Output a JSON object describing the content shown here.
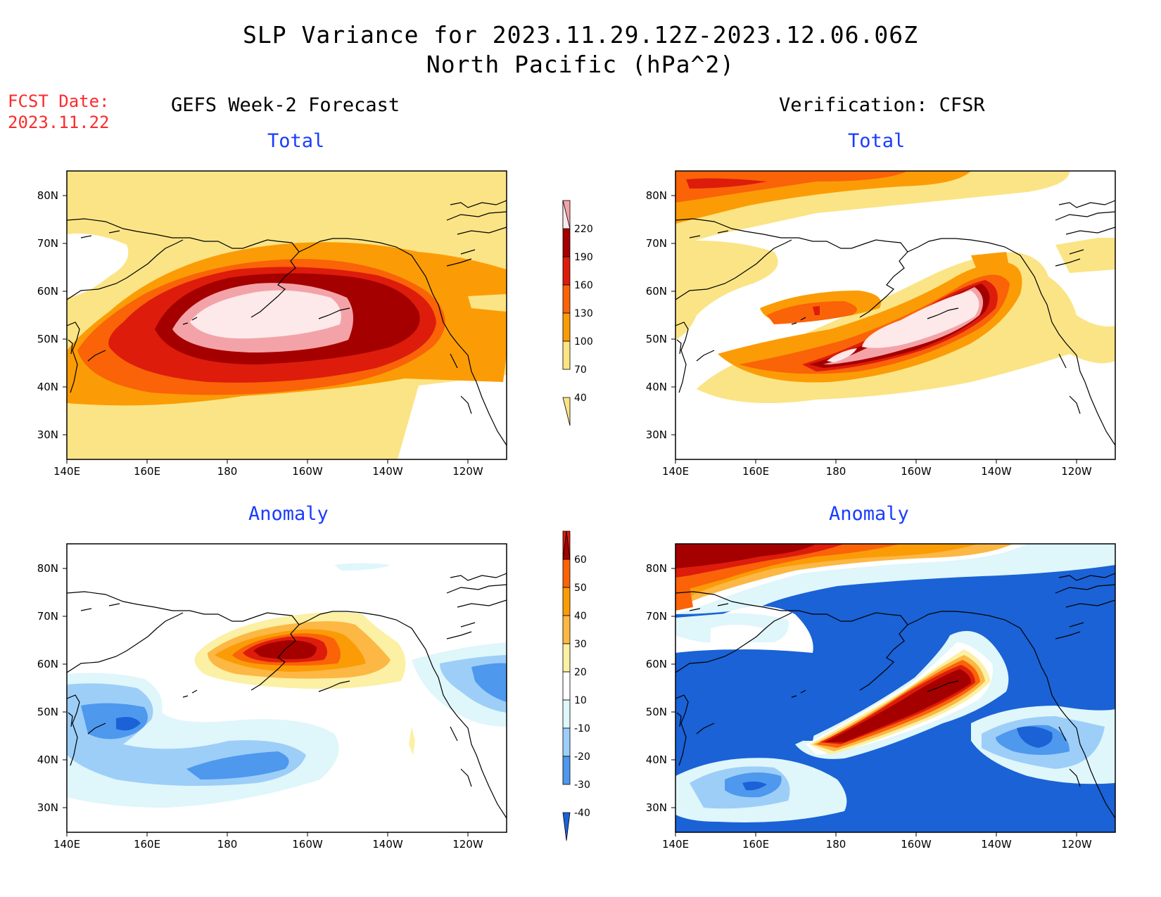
{
  "header": {
    "title_line1": "SLP Variance for 2023.11.29.12Z-2023.12.06.06Z",
    "title_line2": "North Pacific (hPa^2)",
    "fcst_label": "FCST Date:",
    "fcst_date": "2023.11.22"
  },
  "columns": {
    "left_title": "GEFS Week-2 Forecast",
    "right_title": "Verification: CFSR"
  },
  "panels": {
    "total_label": "Total",
    "anomaly_label": "Anomaly"
  },
  "axes": {
    "lat_labels": [
      "80N",
      "70N",
      "60N",
      "50N",
      "40N",
      "30N"
    ],
    "lon_labels": [
      "140E",
      "160E",
      "180",
      "160W",
      "140W",
      "120W"
    ]
  },
  "colorbars": {
    "total": {
      "levels": [
        "220",
        "190",
        "160",
        "130",
        "100",
        "70",
        "40"
      ],
      "colors": [
        "#fde9e9",
        "#f3a3a8",
        "#a50000",
        "#dd1c0c",
        "#fa6307",
        "#fb9c06",
        "#fbe485"
      ]
    },
    "anomaly": {
      "levels": [
        "60",
        "50",
        "40",
        "30",
        "20",
        "10",
        "-10",
        "-20",
        "-30",
        "-40"
      ],
      "colors": [
        "#a50000",
        "#dd1c0c",
        "#fa6307",
        "#fb9c06",
        "#fcb744",
        "#fbf0a3",
        "#ffffff",
        "#dff6fb",
        "#9ccef8",
        "#4e98ee",
        "#1a62d6"
      ]
    }
  }
}
